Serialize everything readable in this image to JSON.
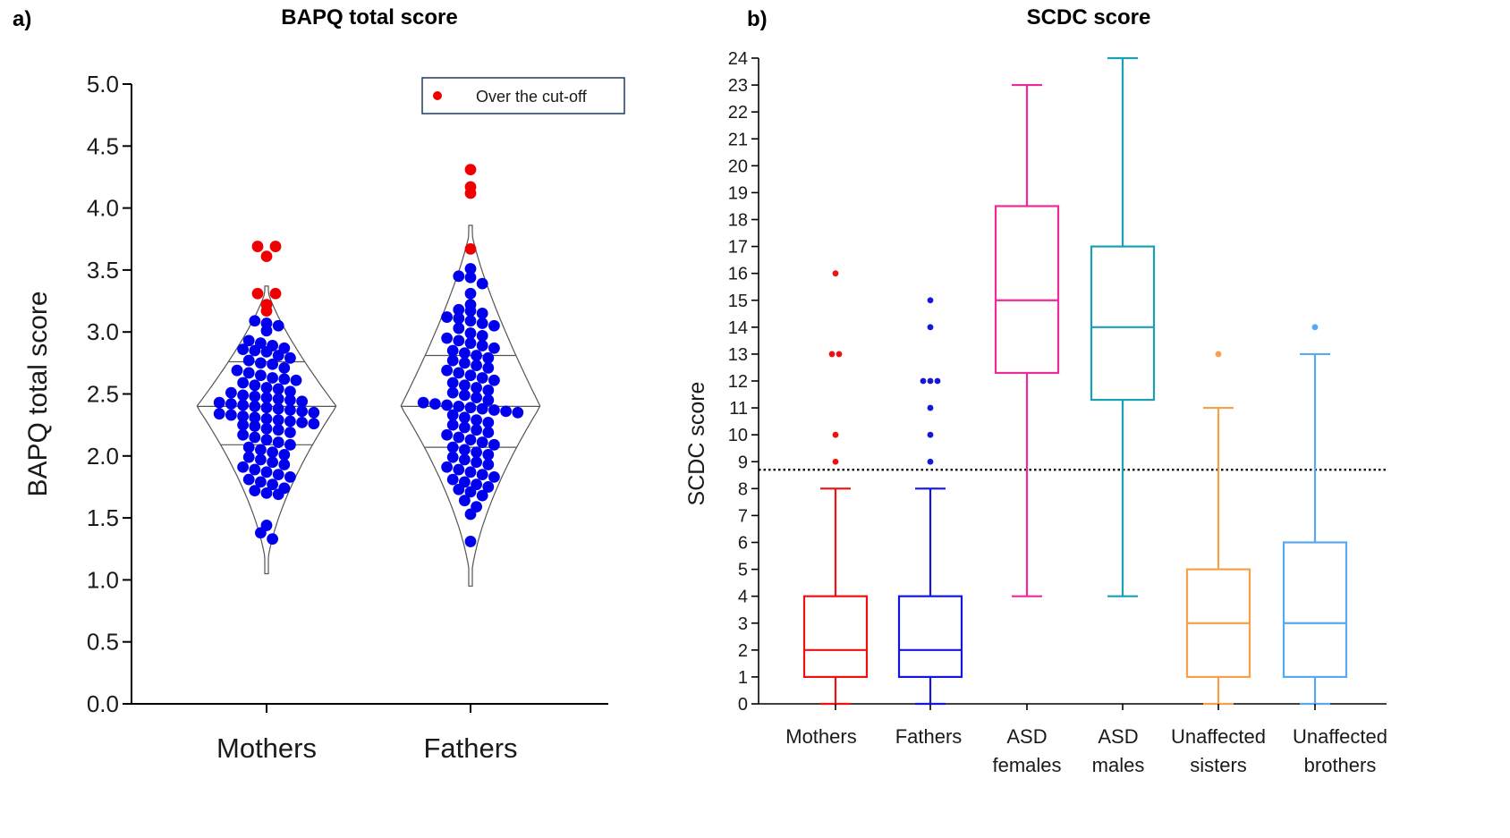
{
  "colors": {
    "dot": "#0000ee",
    "cutoff_dot": "#ee0000",
    "axis": "#000000",
    "violin": "#555555"
  },
  "chart_data": [
    {
      "panel_label": "a)",
      "type": "scatter",
      "subtype": "violin-dotplot",
      "title": "BAPQ total score",
      "xlabel": "",
      "ylabel": "BAPQ total score",
      "ylim": [
        0,
        5
      ],
      "yticks": [
        "0.0",
        "0.5",
        "1.0",
        "1.5",
        "2.0",
        "2.5",
        "3.0",
        "3.5",
        "4.0",
        "4.5",
        "5.0"
      ],
      "categories": [
        "Mothers",
        "Fathers"
      ],
      "legend": {
        "label": "Over the cut-off",
        "color": "#ee0000",
        "position": "top-right"
      },
      "groups": [
        {
          "category": "Mothers",
          "min": 1.05,
          "max": 3.37,
          "median": 2.4,
          "q1": 2.09,
          "q3": 2.76,
          "over_cutoff": [
            3.69,
            3.69,
            3.61,
            3.31,
            3.31,
            3.22,
            3.17
          ],
          "values": [
            3.09,
            3.07,
            3.05,
            3.01,
            2.93,
            2.91,
            2.89,
            2.87,
            2.86,
            2.85,
            2.84,
            2.81,
            2.79,
            2.77,
            2.75,
            2.74,
            2.71,
            2.69,
            2.67,
            2.65,
            2.63,
            2.62,
            2.61,
            2.59,
            2.57,
            2.55,
            2.54,
            2.52,
            2.51,
            2.49,
            2.48,
            2.47,
            2.46,
            2.45,
            2.44,
            2.43,
            2.42,
            2.41,
            2.4,
            2.39,
            2.38,
            2.37,
            2.36,
            2.35,
            2.34,
            2.33,
            2.32,
            2.31,
            2.3,
            2.29,
            2.28,
            2.27,
            2.26,
            2.25,
            2.24,
            2.22,
            2.21,
            2.19,
            2.17,
            2.15,
            2.13,
            2.11,
            2.09,
            2.07,
            2.05,
            2.03,
            2.01,
            1.99,
            1.97,
            1.95,
            1.93,
            1.91,
            1.89,
            1.87,
            1.85,
            1.83,
            1.81,
            1.79,
            1.77,
            1.74,
            1.72,
            1.7,
            1.69,
            1.44,
            1.38,
            1.33
          ]
        },
        {
          "category": "Fathers",
          "min": 0.95,
          "max": 3.86,
          "median": 2.4,
          "q1": 2.07,
          "q3": 2.81,
          "over_cutoff": [
            4.31,
            4.17,
            4.12,
            3.67
          ],
          "values": [
            3.51,
            3.45,
            3.44,
            3.39,
            3.31,
            3.22,
            3.18,
            3.17,
            3.15,
            3.12,
            3.11,
            3.09,
            3.07,
            3.05,
            3.03,
            2.99,
            2.97,
            2.95,
            2.93,
            2.91,
            2.89,
            2.87,
            2.85,
            2.83,
            2.81,
            2.79,
            2.77,
            2.75,
            2.73,
            2.71,
            2.69,
            2.67,
            2.65,
            2.63,
            2.61,
            2.59,
            2.57,
            2.55,
            2.53,
            2.51,
            2.49,
            2.47,
            2.45,
            2.43,
            2.42,
            2.41,
            2.4,
            2.39,
            2.38,
            2.37,
            2.36,
            2.35,
            2.33,
            2.31,
            2.29,
            2.27,
            2.25,
            2.23,
            2.21,
            2.19,
            2.17,
            2.15,
            2.13,
            2.11,
            2.09,
            2.07,
            2.05,
            2.03,
            2.01,
            1.99,
            1.97,
            1.95,
            1.93,
            1.91,
            1.89,
            1.87,
            1.85,
            1.83,
            1.81,
            1.79,
            1.77,
            1.75,
            1.73,
            1.71,
            1.68,
            1.64,
            1.59,
            1.53,
            1.31
          ]
        }
      ]
    },
    {
      "panel_label": "b)",
      "type": "box",
      "title": "SCDC score",
      "xlabel": "",
      "ylabel": "SCDC score",
      "ylim": [
        0,
        24
      ],
      "yticks": [
        "0",
        "1",
        "2",
        "3",
        "4",
        "5",
        "6",
        "7",
        "8",
        "9",
        "10",
        "11",
        "12",
        "13",
        "14",
        "15",
        "16",
        "17",
        "18",
        "19",
        "20",
        "21",
        "22",
        "23",
        "24"
      ],
      "cutoff_line": 8.7,
      "grid": false,
      "categories": [
        {
          "line1": "Mothers",
          "line2": ""
        },
        {
          "line1": "Fathers",
          "line2": ""
        },
        {
          "line1": "ASD",
          "line2": "females"
        },
        {
          "line1": "ASD",
          "line2": "males"
        },
        {
          "line1": "Unaffected",
          "line2": "sisters"
        },
        {
          "line1": "Unaffected",
          "line2": "brothers"
        }
      ],
      "series": [
        {
          "color": "#ee1111",
          "min": 0,
          "q1": 1,
          "median": 2,
          "q3": 4,
          "max": 8,
          "outliers": [
            16,
            13,
            13,
            10,
            9
          ]
        },
        {
          "color": "#1515dd",
          "min": 0,
          "q1": 1,
          "median": 2,
          "q3": 4,
          "max": 8,
          "outliers": [
            15,
            14,
            12,
            12,
            12,
            11,
            10,
            9
          ]
        },
        {
          "color": "#ee2a9a",
          "min": 4,
          "q1": 12.3,
          "median": 15,
          "q3": 18.5,
          "max": 23,
          "outliers": []
        },
        {
          "color": "#1a9fb5",
          "min": 4,
          "q1": 11.3,
          "median": 14,
          "q3": 17,
          "max": 24,
          "outliers": []
        },
        {
          "color": "#f5a04a",
          "min": 0,
          "q1": 1,
          "median": 3,
          "q3": 5,
          "max": 11,
          "outliers": [
            13
          ]
        },
        {
          "color": "#5aa8f0",
          "min": 0,
          "q1": 1,
          "median": 3,
          "q3": 6,
          "max": 13,
          "outliers": [
            14
          ]
        }
      ]
    }
  ]
}
